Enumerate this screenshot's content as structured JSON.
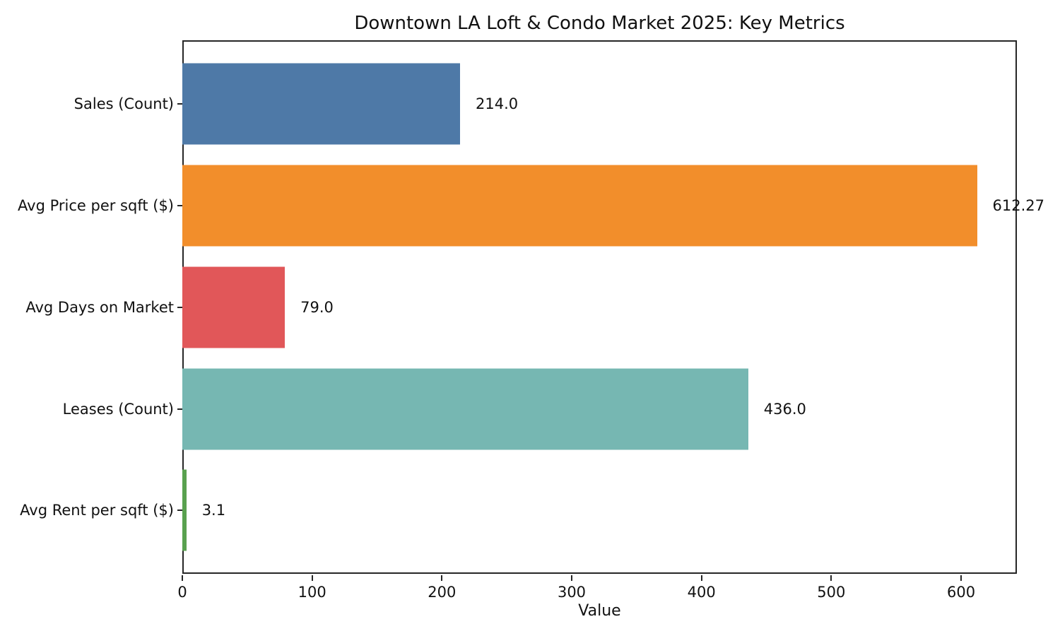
{
  "chart_data": {
    "type": "bar",
    "orientation": "horizontal",
    "title": "Downtown LA Loft & Condo Market 2025: Key Metrics",
    "xlabel": "Value",
    "ylabel": "",
    "categories": [
      "Sales (Count)",
      "Avg Price per sqft ($)",
      "Avg Days on Market",
      "Leases (Count)",
      "Avg Rent per sqft ($)"
    ],
    "values": [
      214.0,
      612.27,
      79.0,
      436.0,
      3.1
    ],
    "value_labels": [
      "214.0",
      "612.27",
      "79.0",
      "436.0",
      "3.1"
    ],
    "bar_colors": [
      "#4E79A7",
      "#F28E2B",
      "#E15759",
      "#76B7B2",
      "#59A14F"
    ],
    "xlim": [
      0,
      643
    ],
    "xticks": [
      0,
      100,
      200,
      300,
      400,
      500,
      600
    ],
    "grid": false,
    "legend_position": "none",
    "axis_color": "#262626"
  }
}
